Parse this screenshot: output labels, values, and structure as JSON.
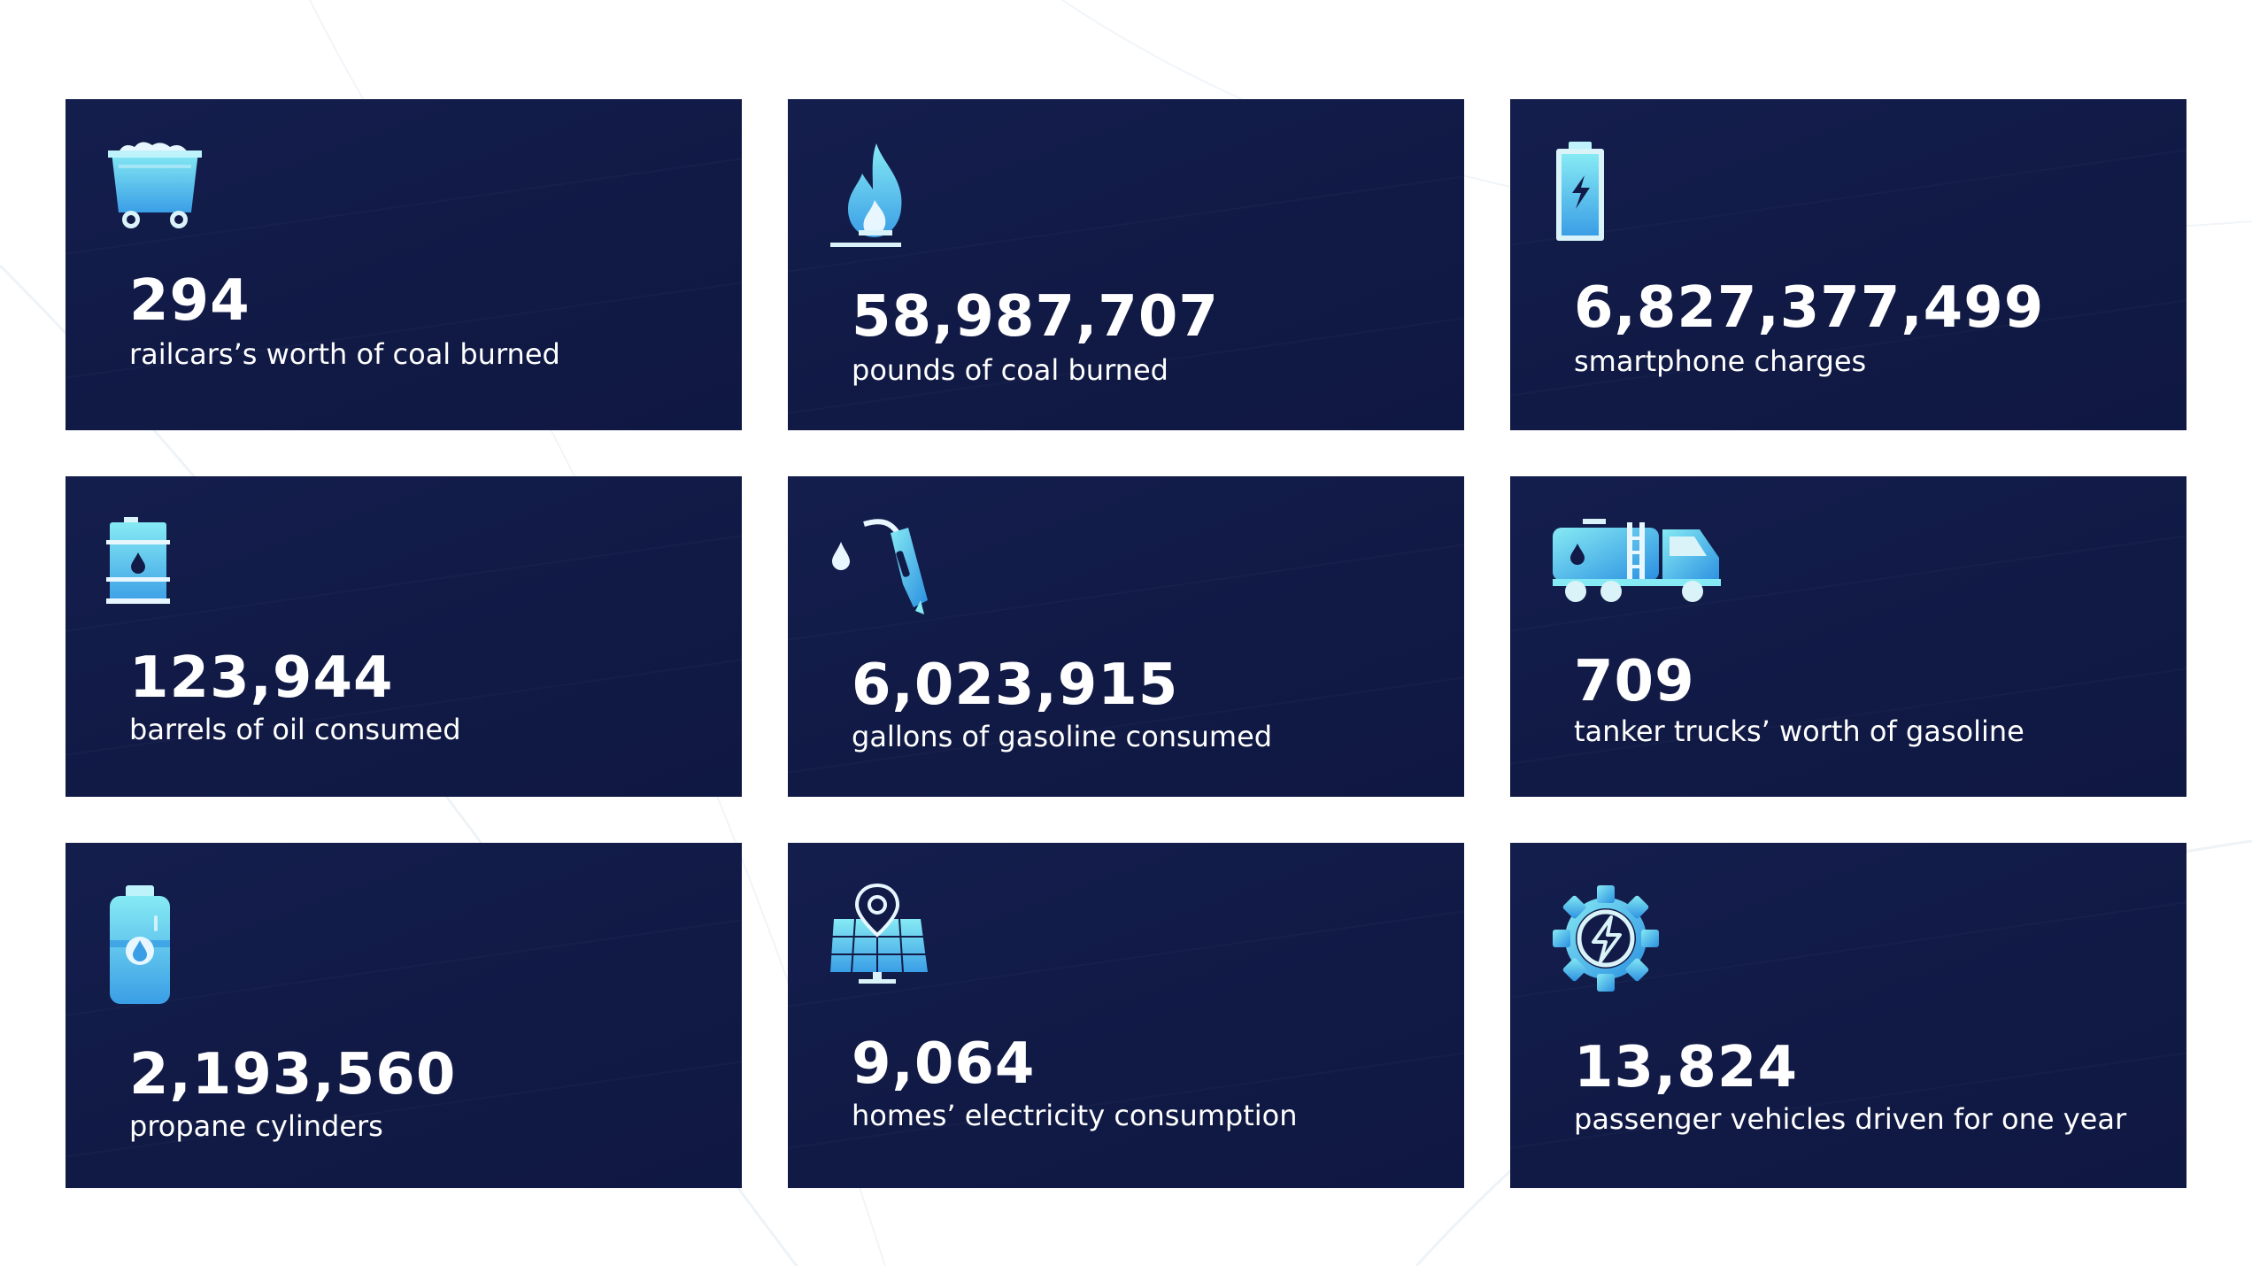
{
  "colors": {
    "background": "#ffffff",
    "card": "#121b47",
    "text": "#ffffff",
    "icon_light": "#7fe3f2",
    "icon_mid": "#4cc6ea",
    "icon_dark": "#2a8fe0"
  },
  "cards": [
    {
      "icon": "coal-cart-icon",
      "value": "294",
      "label": "railcars’s worth of coal burned"
    },
    {
      "icon": "flame-icon",
      "value": "58,987,707",
      "label": "pounds of coal burned"
    },
    {
      "icon": "battery-icon",
      "value": "6,827,377,499",
      "label": "smartphone charges"
    },
    {
      "icon": "oil-barrel-icon",
      "value": "123,944",
      "label": "barrels of oil consumed"
    },
    {
      "icon": "fuel-nozzle-icon",
      "value": "6,023,915",
      "label": "gallons of gasoline consumed"
    },
    {
      "icon": "tanker-truck-icon",
      "value": "709",
      "label": "tanker trucks’ worth of gasoline"
    },
    {
      "icon": "propane-cylinder-icon",
      "value": "2,193,560",
      "label": "propane cylinders"
    },
    {
      "icon": "solar-panel-location-icon",
      "value": "9,064",
      "label": "homes’ electricity consumption"
    },
    {
      "icon": "gear-lightning-icon",
      "value": "13,824",
      "label": "passenger vehicles driven for one year"
    }
  ]
}
